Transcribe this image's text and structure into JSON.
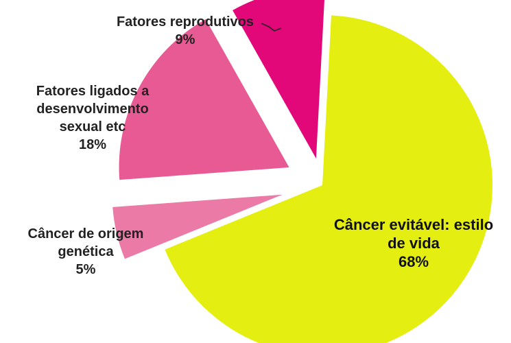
{
  "chart_data": {
    "type": "pie",
    "title": "",
    "exploded": true,
    "slices": [
      {
        "label_lines": [
          "Câncer evitável: estilo",
          "de vida"
        ],
        "pct_label": "68%",
        "value": 68,
        "color": "#e4ee10"
      },
      {
        "label_lines": [
          "Câncer de origem",
          "genética"
        ],
        "pct_label": "5%",
        "value": 5,
        "color": "#ec7aa6"
      },
      {
        "label_lines": [
          "Fatores ligados a",
          "desenvolvimento",
          "sexual etc"
        ],
        "pct_label": "18%",
        "value": 18,
        "color": "#e85a94"
      },
      {
        "label_lines": [
          "Fatores reprodutivos"
        ],
        "pct_label": "9%",
        "value": 9,
        "color": "#e2087a"
      }
    ]
  }
}
